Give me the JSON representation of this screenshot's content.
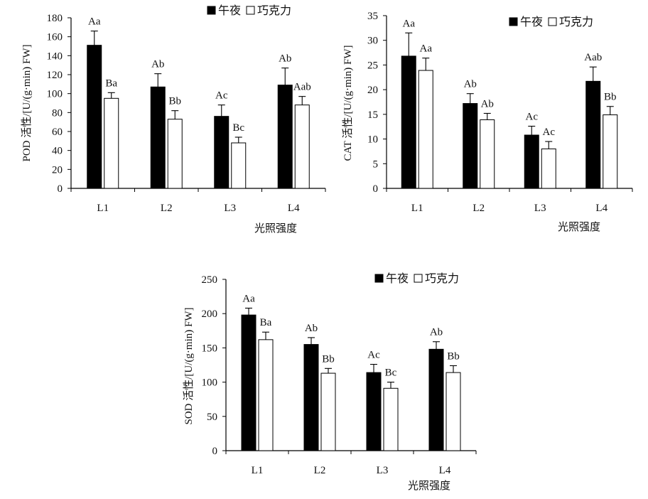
{
  "chart_data": [
    {
      "type": "bar",
      "categories": [
        "L1",
        "L2",
        "L3",
        "L4"
      ],
      "series": [
        {
          "name": "午夜",
          "values": [
            151,
            107,
            76,
            109
          ],
          "errors": [
            15,
            14,
            12,
            18
          ],
          "labels": [
            "Aa",
            "Ab",
            "Ac",
            "Ab"
          ]
        },
        {
          "name": "巧克力",
          "values": [
            95,
            73,
            48,
            88
          ],
          "errors": [
            6,
            9,
            6,
            9
          ],
          "labels": [
            "Ba",
            "Bb",
            "Bc",
            "Aab"
          ]
        }
      ],
      "ylim": [
        0,
        180
      ],
      "yticks": [
        0,
        20,
        40,
        60,
        80,
        100,
        120,
        140,
        160,
        180
      ],
      "ylabel": "POD 活性/[U/(g·min) FW]",
      "xlabel": "光照强度",
      "colors": [
        "#000000",
        "#ffffff"
      ],
      "legend": "top-right"
    },
    {
      "type": "bar",
      "categories": [
        "L1",
        "L2",
        "L3",
        "L4"
      ],
      "series": [
        {
          "name": "午夜",
          "values": [
            26.8,
            17.2,
            10.8,
            21.7
          ],
          "errors": [
            4.7,
            2.0,
            1.8,
            2.9
          ],
          "labels": [
            "Aa",
            "Ab",
            "Ac",
            "Aab"
          ]
        },
        {
          "name": "巧克力",
          "values": [
            23.9,
            13.9,
            8.0,
            14.9
          ],
          "errors": [
            2.5,
            1.3,
            1.5,
            1.7
          ],
          "labels": [
            "Aa",
            "Ab",
            "Ac",
            "Bb"
          ]
        }
      ],
      "ylim": [
        0,
        35
      ],
      "yticks": [
        0,
        5,
        10,
        15,
        20,
        25,
        30,
        35
      ],
      "ylabel": "CAT 活性/[U/(g·min) FW]",
      "xlabel": "光照强度",
      "colors": [
        "#000000",
        "#ffffff"
      ],
      "legend": "top-right"
    },
    {
      "type": "bar",
      "categories": [
        "L1",
        "L2",
        "L3",
        "L4"
      ],
      "series": [
        {
          "name": "午夜",
          "values": [
            198,
            155,
            114,
            148
          ],
          "errors": [
            10,
            10,
            12,
            11
          ],
          "labels": [
            "Aa",
            "Ab",
            "Ac",
            "Ab"
          ]
        },
        {
          "name": "巧克力",
          "values": [
            162,
            113,
            91,
            114
          ],
          "errors": [
            11,
            7,
            9,
            10
          ],
          "labels": [
            "Ba",
            "Bb",
            "Bc",
            "Bb"
          ]
        }
      ],
      "ylim": [
        0,
        250
      ],
      "yticks": [
        0,
        50,
        100,
        150,
        200,
        250
      ],
      "ylabel": "SOD 活性/[U/(g·min) FW]",
      "xlabel": "光照强度",
      "colors": [
        "#000000",
        "#ffffff"
      ],
      "legend": "top-right"
    }
  ]
}
